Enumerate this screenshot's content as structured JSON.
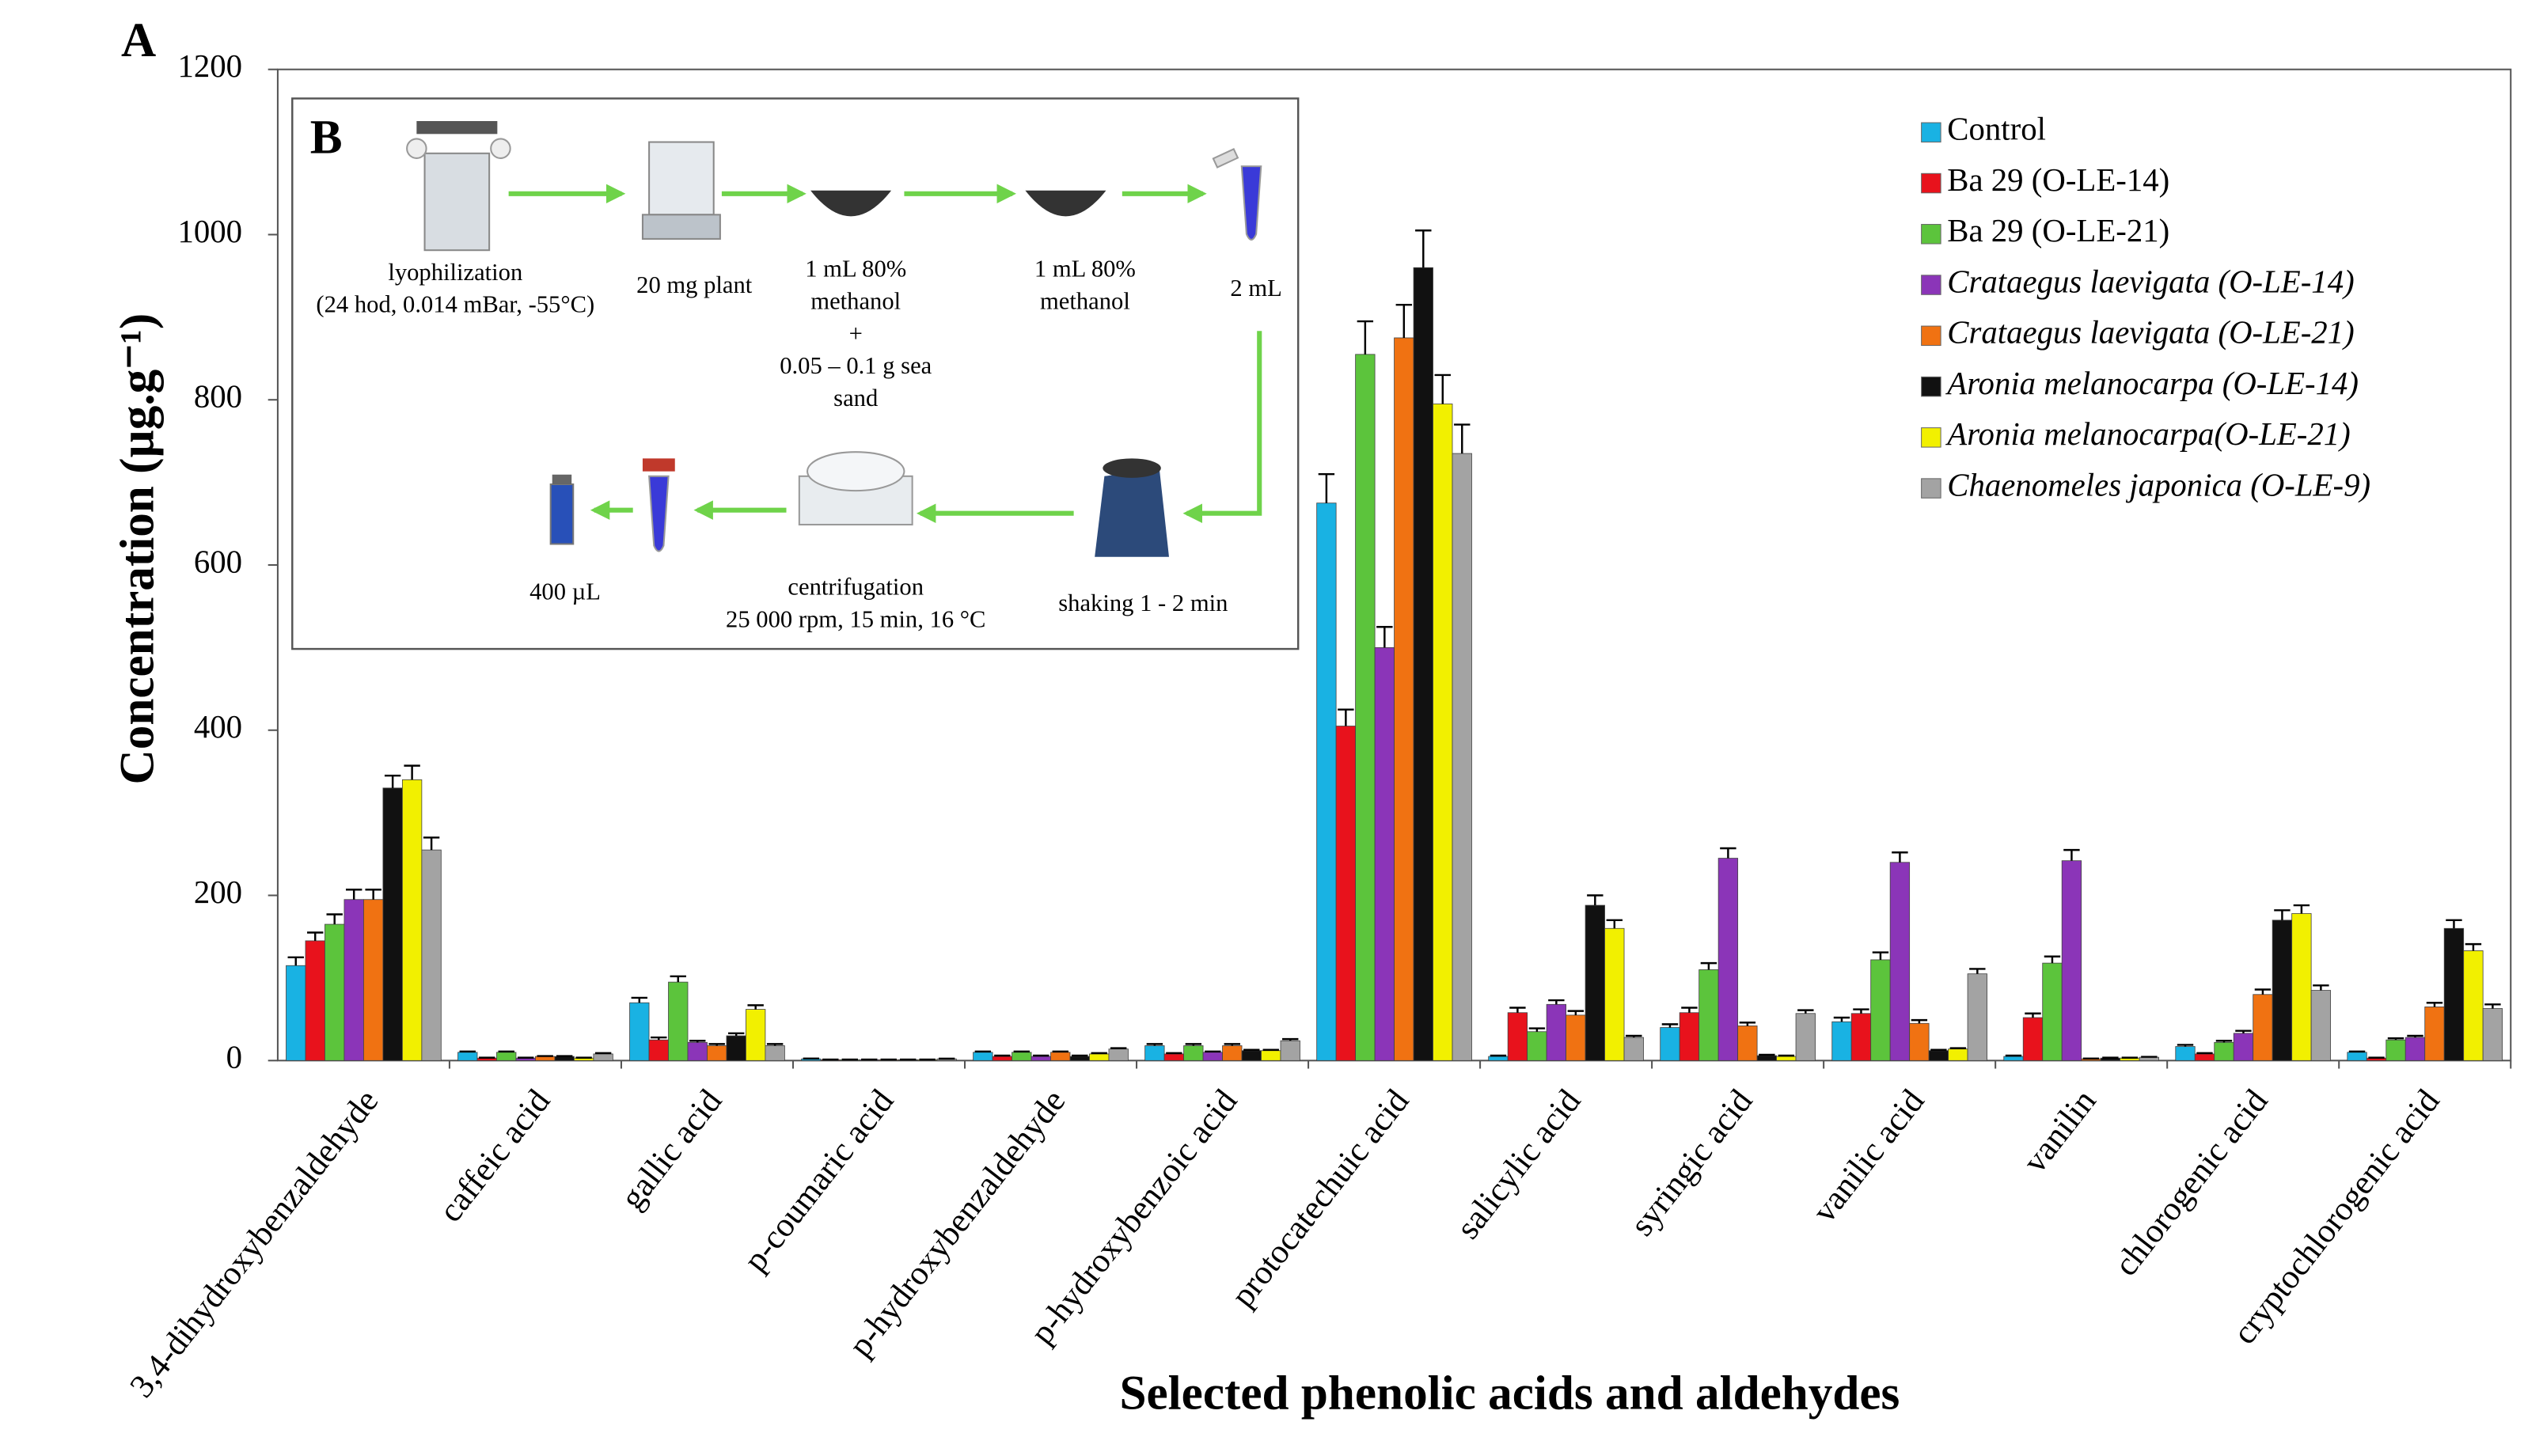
{
  "chart_data": {
    "type": "bar",
    "panel_label": "A",
    "xlabel": "Selected phenolic acids and aldehydes",
    "ylabel": "Concentration (µg.g⁻¹)",
    "categories": [
      "3,4-dihydroxybenzaldehyde",
      "caffeic acid",
      "gallic acid",
      "p-coumaric acid",
      "p-hydroxybenzaldehyde",
      "p-hydroxybenzoic acid",
      "protocatechuic acid",
      "salicylic acid",
      "syringic acid",
      "vanilic acid",
      "vanilin",
      "chlorogenic acid",
      "cryptochlorogenic acid"
    ],
    "ylim": [
      0,
      1200
    ],
    "yticks": [
      0,
      200,
      400,
      600,
      800,
      1000,
      1200
    ],
    "grid": false,
    "legend": "upper right",
    "series": [
      {
        "name": "Control",
        "color": "#19b2e3",
        "italic": false,
        "values": [
          115,
          10,
          70,
          2,
          10,
          18,
          675,
          5,
          40,
          47,
          5,
          17,
          10
        ],
        "errors": [
          10,
          1,
          6,
          0.5,
          1,
          2,
          35,
          1,
          4,
          5,
          1,
          2,
          1
        ]
      },
      {
        "name": "Ba 29 (O-LE-14)",
        "color": "#e8121c",
        "italic": false,
        "values": [
          145,
          3,
          25,
          1,
          5,
          8,
          405,
          58,
          58,
          57,
          52,
          8,
          3
        ],
        "errors": [
          10,
          0.5,
          3,
          0.3,
          1,
          1,
          20,
          6,
          6,
          5,
          5,
          1,
          0.5
        ]
      },
      {
        "name": "Ba 29 (O-LE-21)",
        "color": "#5cc43c",
        "italic": false,
        "values": [
          165,
          10,
          95,
          1,
          10,
          18,
          855,
          35,
          110,
          122,
          118,
          22,
          25
        ],
        "errors": [
          12,
          1,
          7,
          0.3,
          1,
          2,
          40,
          4,
          8,
          9,
          8,
          2,
          2
        ]
      },
      {
        "name": "Crataegus laevigata (O-LE-14)",
        "color": "#8b35b8",
        "italic": true,
        "values": [
          195,
          3,
          22,
          1,
          5,
          10,
          500,
          68,
          245,
          240,
          242,
          33,
          28
        ],
        "errors": [
          12,
          0.5,
          2,
          0.3,
          1,
          1,
          25,
          5,
          12,
          12,
          13,
          3,
          2
        ]
      },
      {
        "name": "Crataegus laevigata (O-LE-21)",
        "color": "#f07212",
        "italic": true,
        "values": [
          195,
          5,
          18,
          1,
          10,
          18,
          875,
          55,
          42,
          45,
          2,
          80,
          65
        ],
        "errors": [
          12,
          0.5,
          2,
          0.3,
          1,
          2,
          40,
          5,
          4,
          4,
          0.5,
          6,
          5
        ]
      },
      {
        "name": "Aronia melanocarpa (O-LE-14)",
        "color": "#111111",
        "italic": true,
        "values": [
          330,
          5,
          30,
          1,
          5,
          12,
          960,
          188,
          6,
          12,
          3,
          170,
          160
        ],
        "errors": [
          15,
          0.5,
          3,
          0.3,
          1,
          1,
          45,
          12,
          1,
          1,
          0.5,
          12,
          10
        ]
      },
      {
        "name": "Aronia melanocarpa(O-LE-21)",
        "color": "#f2f000",
        "italic": true,
        "values": [
          340,
          3,
          62,
          1,
          8,
          12,
          795,
          160,
          5,
          14,
          3,
          178,
          133
        ],
        "errors": [
          17,
          0.5,
          5,
          0.3,
          1,
          1,
          35,
          10,
          1,
          1,
          0.5,
          10,
          8
        ]
      },
      {
        "name": "Chaenomeles japonica (O-LE-9)",
        "color": "#a3a3a3",
        "italic": true,
        "values": [
          255,
          8,
          18,
          2,
          14,
          24,
          735,
          28,
          57,
          105,
          4,
          85,
          63
        ],
        "errors": [
          15,
          1,
          2,
          0.3,
          1,
          2,
          35,
          2,
          4,
          6,
          0.5,
          6,
          5
        ]
      }
    ]
  },
  "inset": {
    "label": "B",
    "steps": [
      {
        "lines": [
          "lyophilization",
          "(24 hod, 0.014 mBar, -55°C)"
        ]
      },
      {
        "lines": [
          "20 mg plant"
        ]
      },
      {
        "lines": [
          "1 mL 80%",
          "methanol",
          "+",
          "0.05 – 0.1 g sea",
          "sand"
        ]
      },
      {
        "lines": [
          "1 mL 80%",
          "methanol"
        ]
      },
      {
        "lines": [
          "2 mL"
        ]
      },
      {
        "lines": [
          "shaking 1 - 2 min"
        ]
      },
      {
        "lines": [
          "centrifugation",
          "25 000 rpm,  15 min, 16 °C"
        ]
      },
      {
        "lines": [
          "400 µL"
        ]
      }
    ]
  }
}
